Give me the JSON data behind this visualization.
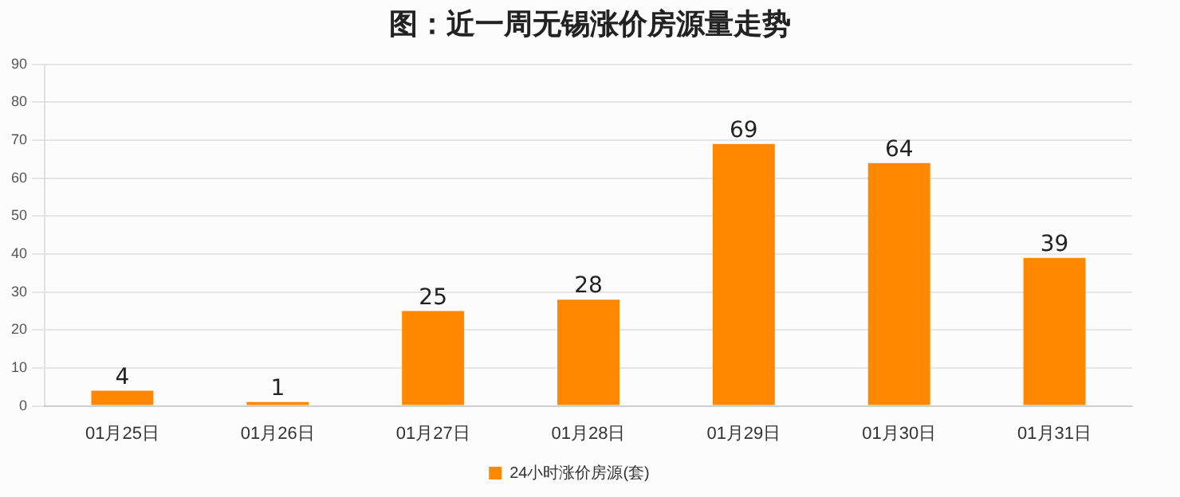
{
  "chart_data": {
    "type": "bar",
    "title": "图：近一周无锡涨价房源量走势",
    "categories": [
      "01月25日",
      "01月26日",
      "01月27日",
      "01月28日",
      "01月29日",
      "01月30日",
      "01月31日"
    ],
    "series": [
      {
        "name": "24小时涨价房源(套)",
        "color": "#ff8800",
        "values": [
          4,
          1,
          25,
          28,
          69,
          64,
          39
        ]
      }
    ],
    "ylim": [
      0,
      90
    ],
    "yticks": [
      0,
      10,
      20,
      30,
      40,
      50,
      60,
      70,
      80,
      90
    ],
    "grid": "y",
    "legend": "bottom",
    "data_labels": true
  }
}
